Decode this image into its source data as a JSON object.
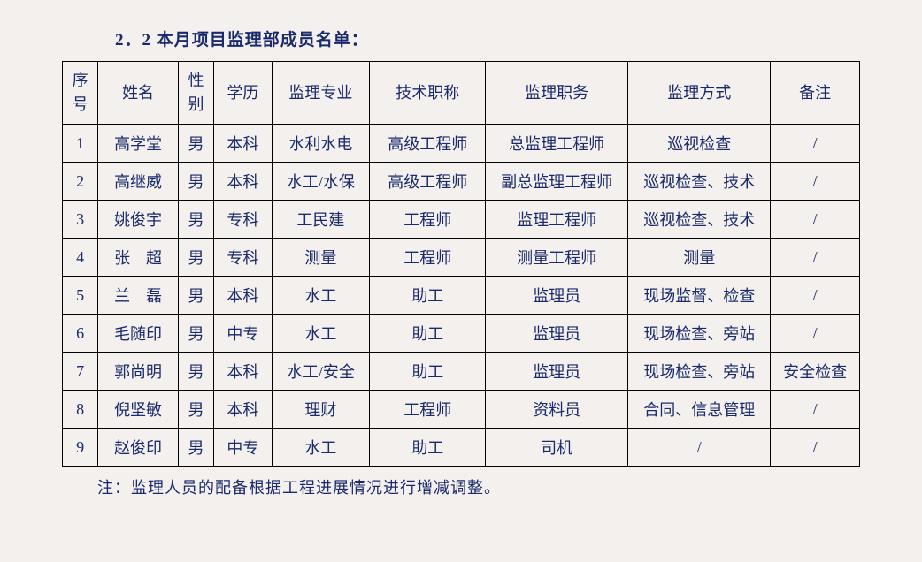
{
  "title": "2．2 本月项目监理部成员名单：",
  "table": {
    "columns": [
      "序号",
      "姓名",
      "性别",
      "学历",
      "监理专业",
      "技术职称",
      "监理职务",
      "监理方式",
      "备注"
    ],
    "header_two_line": {
      "col0": {
        "line1": "序",
        "line2": "号"
      },
      "col2": {
        "line1": "性",
        "line2": "别"
      }
    },
    "rows": [
      {
        "seq": "1",
        "name": "高学堂",
        "gender": "男",
        "edu": "本科",
        "major": "水利水电",
        "title": "高级工程师",
        "position": "总监理工程师",
        "method": "巡视检查",
        "remark": "/"
      },
      {
        "seq": "2",
        "name": "高继威",
        "gender": "男",
        "edu": "本科",
        "major": "水工/水保",
        "title": "高级工程师",
        "position": "副总监理工程师",
        "method": "巡视检查、技术",
        "remark": "/"
      },
      {
        "seq": "3",
        "name": "姚俊宇",
        "gender": "男",
        "edu": "专科",
        "major": "工民建",
        "title": "工程师",
        "position": "监理工程师",
        "method": "巡视检查、技术",
        "remark": "/"
      },
      {
        "seq": "4",
        "name": "张超",
        "name_display": "张　超",
        "gender": "男",
        "edu": "专科",
        "major": "测量",
        "title": "工程师",
        "position": "测量工程师",
        "method": "测量",
        "remark": "/"
      },
      {
        "seq": "5",
        "name": "兰磊",
        "name_display": "兰　磊",
        "gender": "男",
        "edu": "本科",
        "major": "水工",
        "title": "助工",
        "position": "监理员",
        "method": "现场监督、检查",
        "remark": "/"
      },
      {
        "seq": "6",
        "name": "毛随印",
        "gender": "男",
        "edu": "中专",
        "major": "水工",
        "title": "助工",
        "position": "监理员",
        "method": "现场检查、旁站",
        "remark": "/"
      },
      {
        "seq": "7",
        "name": "郭尚明",
        "gender": "男",
        "edu": "本科",
        "major": "水工/安全",
        "title": "助工",
        "position": "监理员",
        "method": "现场检查、旁站",
        "remark": "安全检查"
      },
      {
        "seq": "8",
        "name": "倪坚敏",
        "gender": "男",
        "edu": "本科",
        "major": "理财",
        "title": "工程师",
        "position": "资料员",
        "method": "合同、信息管理",
        "remark": "/"
      },
      {
        "seq": "9",
        "name": "赵俊印",
        "gender": "男",
        "edu": "中专",
        "major": "水工",
        "title": "助工",
        "position": "司机",
        "method": "/",
        "remark": "/"
      }
    ]
  },
  "note": "注：监理人员的配备根据工程进展情况进行增减调整。",
  "colors": {
    "background": "#f3f0ed",
    "text": "#1a2a6c",
    "border": "#000000"
  },
  "typography": {
    "title_fontsize": 19,
    "cell_fontsize": 18,
    "note_fontsize": 18,
    "font_family": "SimSun"
  }
}
